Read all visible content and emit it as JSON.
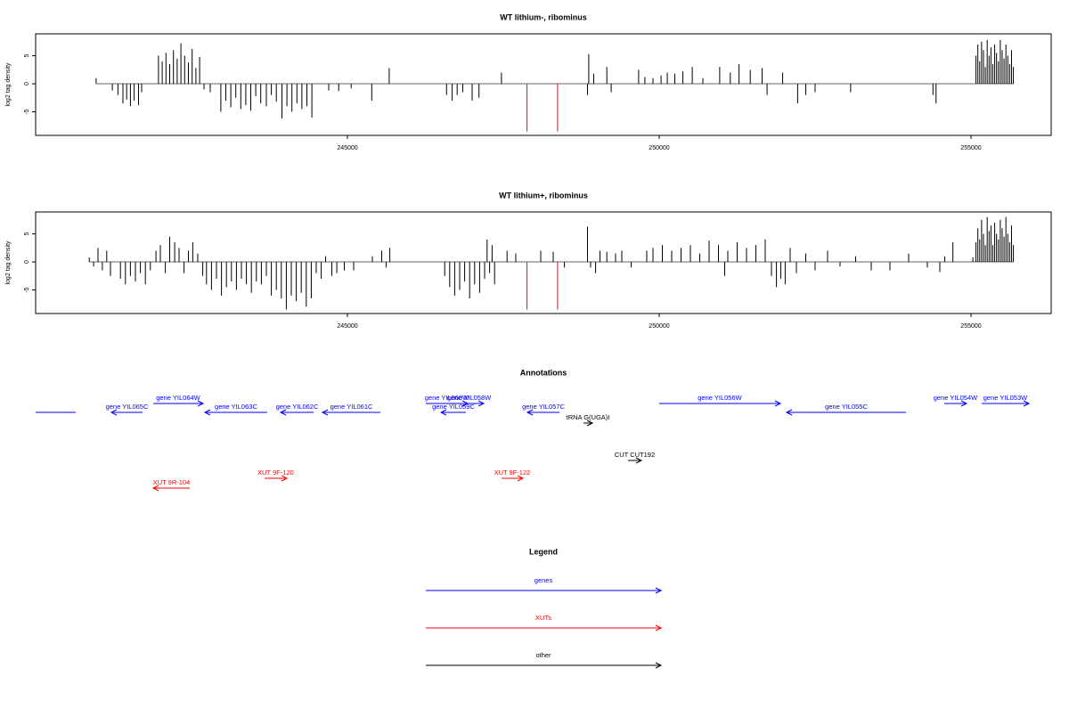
{
  "chart_data": [
    {
      "type": "bar",
      "title": "WT lithium-, ribominus",
      "y_label": "log2 tag density",
      "xlim": [
        240000,
        256286
      ],
      "xticks": [
        245000,
        250000,
        255000
      ],
      "ylim": [
        -9.2,
        8.9
      ],
      "yticks": [
        5,
        0,
        -5
      ],
      "series": [
        {
          "color": "#000000",
          "x": [
            240970,
            241230,
            241320,
            241400,
            241460,
            241520,
            241580,
            241650,
            241700,
            241970,
            242030,
            242090,
            242150,
            242210,
            242270,
            242330,
            242390,
            242450,
            242510,
            242570,
            242630,
            242700,
            242800,
            242970,
            243050,
            243130,
            243210,
            243290,
            243370,
            243450,
            243530,
            243610,
            243700,
            243780,
            243860,
            243950,
            244030,
            244110,
            244190,
            244270,
            244350,
            244430,
            244700,
            244860,
            245060,
            245390,
            245670,
            246590,
            246680,
            246760,
            246850,
            247000,
            247110,
            247470,
            248850,
            248870,
            248950,
            249160,
            249230,
            249670,
            249770,
            249900,
            250030,
            250130,
            250250,
            250380,
            250530,
            250700,
            250970,
            251140,
            251280,
            251460,
            251650,
            251730,
            251980,
            252220,
            252350,
            252500,
            253070,
            254390,
            254440,
            255080,
            255110,
            255140,
            255170,
            255200,
            255230,
            255260,
            255290,
            255320,
            255350,
            255380,
            255410,
            255440,
            255470,
            255500,
            255530,
            255560,
            255590,
            255620,
            255650,
            255680
          ],
          "values": [
            1.0,
            -1.2,
            -2.0,
            -3.5,
            -2.8,
            -4.0,
            -3.0,
            -3.8,
            -1.5,
            5.0,
            4.0,
            5.5,
            3.5,
            6.0,
            4.5,
            7.2,
            5.0,
            3.8,
            6.2,
            2.8,
            4.8,
            -1.0,
            -1.5,
            -5.0,
            -3.0,
            -4.2,
            -2.5,
            -4.5,
            -3.8,
            -4.8,
            -2.2,
            -3.5,
            -4.0,
            -2.0,
            -3.2,
            -6.2,
            -4.0,
            -5.0,
            -3.5,
            -4.5,
            -4.0,
            -6.0,
            -1.2,
            -1.3,
            -0.8,
            -3.0,
            2.8,
            -2.0,
            -3.0,
            -2.0,
            -1.5,
            -3.0,
            -2.5,
            2.0,
            -2.0,
            5.3,
            1.8,
            3.0,
            -1.5,
            2.5,
            1.2,
            1.0,
            1.5,
            2.0,
            1.8,
            2.2,
            3.0,
            1.0,
            3.0,
            2.0,
            3.5,
            2.5,
            2.8,
            -2.0,
            2.0,
            -3.5,
            -2.0,
            -1.5,
            -1.5,
            -2.0,
            -3.5,
            5.0,
            7.0,
            4.0,
            7.5,
            6.0,
            3.0,
            7.8,
            5.0,
            6.5,
            3.5,
            7.0,
            5.5,
            4.0,
            7.8,
            6.0,
            4.5,
            7.0,
            5.0,
            3.5,
            6.0,
            3.0
          ]
        },
        {
          "color": "#ff0000",
          "x": [
            247880,
            248370
          ],
          "values": [
            -8.5,
            -8.5
          ]
        }
      ]
    },
    {
      "type": "bar",
      "title": "WT lithium+, ribominus",
      "y_label": "log2 tag density",
      "xlim": [
        240000,
        256286
      ],
      "xticks": [
        245000,
        250000,
        255000
      ],
      "ylim": [
        -9.2,
        8.9
      ],
      "yticks": [
        5,
        0,
        -5
      ],
      "series": [
        {
          "color": "#000000",
          "x": [
            240860,
            240930,
            241000,
            241070,
            241140,
            241200,
            241360,
            241440,
            241520,
            241600,
            241680,
            241760,
            241840,
            241930,
            242000,
            242080,
            242150,
            242230,
            242300,
            242380,
            242450,
            242520,
            242600,
            242680,
            242740,
            242820,
            242900,
            242980,
            243060,
            243140,
            243220,
            243300,
            243380,
            243460,
            243540,
            243620,
            243700,
            243780,
            243860,
            243940,
            244020,
            244100,
            244180,
            244260,
            244340,
            244420,
            244500,
            244580,
            244650,
            244750,
            244830,
            244950,
            245100,
            245400,
            245550,
            245620,
            245680,
            246560,
            246640,
            246720,
            246800,
            246880,
            246960,
            247040,
            247120,
            247200,
            247240,
            247280,
            247320,
            247360,
            247560,
            247700,
            248100,
            248300,
            248480,
            248850,
            248900,
            248980,
            249050,
            249160,
            249300,
            249400,
            249550,
            249800,
            249900,
            250050,
            250200,
            250350,
            250500,
            250650,
            250800,
            250950,
            251050,
            251100,
            251250,
            251400,
            251550,
            251700,
            251800,
            251880,
            251950,
            252020,
            252100,
            252200,
            252350,
            252500,
            252700,
            252900,
            253150,
            253400,
            253700,
            254000,
            254300,
            254500,
            254580,
            254710,
            255030,
            255080,
            255110,
            255140,
            255170,
            255200,
            255230,
            255260,
            255290,
            255320,
            255350,
            255380,
            255410,
            255440,
            255470,
            255500,
            255530,
            255560,
            255590,
            255620,
            255650,
            255680
          ],
          "values": [
            0.8,
            -0.8,
            2.5,
            -1.5,
            2.0,
            -2.5,
            -3.0,
            -4.0,
            -2.5,
            -3.5,
            -2.0,
            -4.0,
            -1.5,
            2.0,
            3.0,
            -2.0,
            4.5,
            3.5,
            2.5,
            -2.0,
            2.0,
            3.5,
            1.5,
            -2.5,
            -4.0,
            -5.0,
            -3.0,
            -6.0,
            -4.5,
            -3.5,
            -5.0,
            -3.0,
            -4.0,
            -5.5,
            -3.5,
            -4.0,
            -2.5,
            -6.0,
            -5.0,
            -6.5,
            -8.5,
            -6.0,
            -7.0,
            -5.5,
            -8.0,
            -6.5,
            -2.0,
            -3.0,
            1.0,
            -2.5,
            -2.0,
            -1.5,
            -1.5,
            1.0,
            2.0,
            -1.0,
            2.5,
            -2.5,
            -4.5,
            -6.0,
            -5.0,
            -3.5,
            -6.5,
            -4.0,
            -5.5,
            -3.0,
            4.0,
            -2.0,
            3.0,
            -4.0,
            2.0,
            1.5,
            2.0,
            1.8,
            -1.0,
            6.3,
            -1.0,
            -2.0,
            2.0,
            1.8,
            1.5,
            2.0,
            -1.0,
            2.0,
            2.5,
            3.0,
            2.0,
            2.5,
            3.0,
            1.5,
            3.8,
            3.0,
            -2.5,
            2.0,
            3.5,
            2.5,
            3.0,
            4.0,
            -2.5,
            -4.5,
            -3.0,
            -4.0,
            2.5,
            -2.0,
            1.5,
            -1.5,
            2.0,
            -0.8,
            1.0,
            -1.5,
            -1.5,
            1.5,
            -1.0,
            -1.8,
            1.0,
            3.5,
            0.8,
            3.5,
            6.0,
            4.0,
            7.5,
            5.0,
            3.0,
            8.0,
            5.5,
            6.5,
            3.0,
            7.0,
            5.0,
            4.0,
            7.5,
            6.0,
            4.5,
            8.0,
            5.0,
            3.5,
            6.5,
            3.0
          ]
        },
        {
          "color": "#ff0000",
          "x": [
            247880,
            248370
          ],
          "values": [
            -8.5,
            -8.5
          ]
        }
      ]
    }
  ],
  "annotations": {
    "title": "Annotations",
    "features": [
      {
        "label": null,
        "start": 240000,
        "end": 240643,
        "strand": null,
        "color": "#0000ff"
      },
      {
        "label": "gene YIL065C",
        "start": 241214,
        "end": 241714,
        "strand": "-",
        "color": "#0000ff"
      },
      {
        "label": "gene YIL064W",
        "start": 241886,
        "end": 242686,
        "strand": "+",
        "color": "#0000ff"
      },
      {
        "label": "gene YIL063C",
        "start": 242714,
        "end": 243714,
        "strand": "-",
        "color": "#0000ff"
      },
      {
        "label": "gene YIL062C",
        "start": 243929,
        "end": 244457,
        "strand": "-",
        "color": "#0000ff"
      },
      {
        "label": "gene YIL061C",
        "start": 244600,
        "end": 245529,
        "strand": "-",
        "color": "#0000ff"
      },
      {
        "label": "gene YIL060W",
        "start": 246257,
        "end": 246929,
        "strand": "+",
        "color": "#0000ff"
      },
      {
        "label": "gene YIL058W",
        "start": 246714,
        "end": 247186,
        "strand": "+",
        "color": "#0000ff"
      },
      {
        "label": "gene YIL059C",
        "start": 246500,
        "end": 246900,
        "strand": "-",
        "color": "#0000ff"
      },
      {
        "label": "gene YIL057C",
        "start": 247886,
        "end": 248400,
        "strand": "-",
        "color": "#0000ff"
      },
      {
        "label": "tRNA G(UGA)I",
        "start": 248786,
        "end": 248929,
        "strand": "+",
        "color": "#000000"
      },
      {
        "label": "gene YIL056W",
        "start": 250000,
        "end": 251943,
        "strand": "+",
        "color": "#0000ff"
      },
      {
        "label": "gene YIL055C",
        "start": 252043,
        "end": 253957,
        "strand": "-",
        "color": "#0000ff"
      },
      {
        "label": "gene YIL054W",
        "start": 254571,
        "end": 254929,
        "strand": "+",
        "color": "#0000ff"
      },
      {
        "label": "gene YIL053W",
        "start": 255171,
        "end": 255929,
        "strand": "+",
        "color": "#0000ff"
      },
      {
        "label": "CUT CUT192",
        "start": 249500,
        "end": 249714,
        "strand": "+",
        "color": "#000000"
      },
      {
        "label": "XUT 9F-120",
        "start": 243671,
        "end": 244029,
        "strand": "+",
        "color": "#ff0000"
      },
      {
        "label": "XUT 9F-122",
        "start": 247471,
        "end": 247814,
        "strand": "+",
        "color": "#ff0000"
      },
      {
        "label": "XUT 9R-104",
        "start": 241886,
        "end": 242471,
        "strand": "-",
        "color": "#ff0000"
      }
    ]
  },
  "legend": {
    "title": "Legend",
    "items": [
      {
        "label": "genes",
        "color": "#0000ff"
      },
      {
        "label": "XUTs",
        "color": "#ff0000"
      },
      {
        "label": "other",
        "color": "#000000"
      }
    ]
  }
}
